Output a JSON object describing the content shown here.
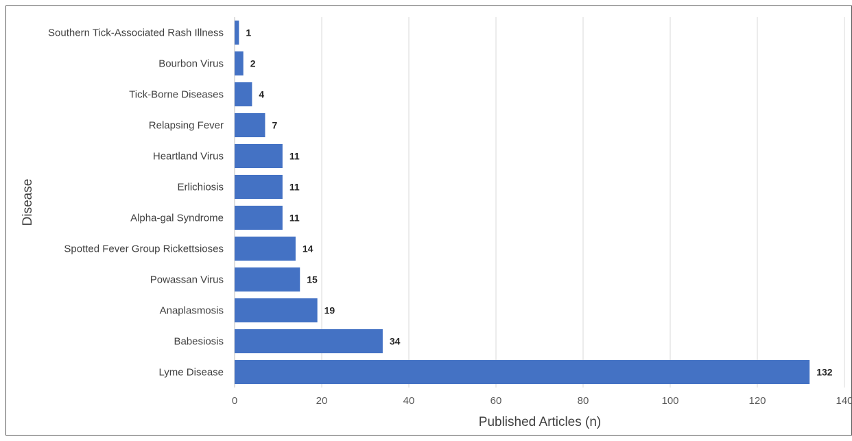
{
  "chart_data": {
    "type": "bar",
    "orientation": "horizontal",
    "title": "",
    "xlabel": "Published Articles (n)",
    "ylabel": "Disease",
    "xlim": [
      0,
      140
    ],
    "x_ticks": [
      0,
      20,
      40,
      60,
      80,
      100,
      120,
      140
    ],
    "grid": "vertical",
    "bar_color": "#4472C4",
    "categories": [
      "Southern Tick-Associated Rash Illness",
      "Bourbon Virus",
      "Tick-Borne Diseases",
      "Relapsing Fever",
      "Heartland Virus",
      "Erlichiosis",
      "Alpha-gal Syndrome",
      "Spotted Fever Group Rickettsioses",
      "Powassan Virus",
      "Anaplasmosis",
      "Babesiosis",
      "Lyme Disease"
    ],
    "values": [
      1,
      2,
      4,
      7,
      11,
      11,
      11,
      14,
      15,
      19,
      34,
      132
    ]
  }
}
